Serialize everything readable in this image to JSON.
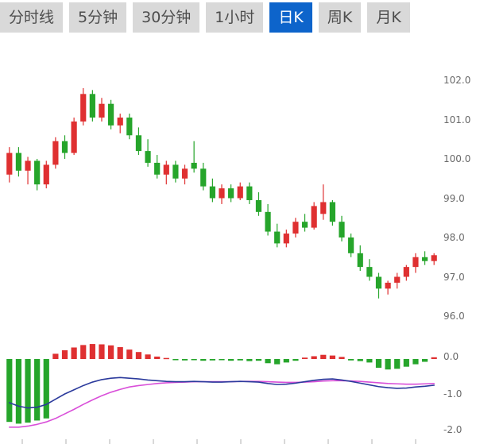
{
  "tabs": {
    "items": [
      {
        "label": "分时线"
      },
      {
        "label": "5分钟"
      },
      {
        "label": "30分钟"
      },
      {
        "label": "1小时"
      },
      {
        "label": "日K"
      },
      {
        "label": "周K"
      },
      {
        "label": "月K"
      }
    ],
    "active_index": 4
  },
  "axes": {
    "price_labels": [
      "102.0",
      "101.0",
      "100.0",
      "99.0",
      "98.0",
      "97.0",
      "96.0"
    ],
    "macd_labels": [
      "0.0",
      "-1.0",
      "-2.0"
    ]
  },
  "colors": {
    "up": "#df3031",
    "down": "#26a52b",
    "dif_line": "#2b3a9c",
    "dea_line": "#d94fd9",
    "tab_bg": "#d9d9d9",
    "tab_text": "#4e4e4e",
    "tab_active_bg": "#0d64cb",
    "tab_active_text": "#ffffff",
    "axis_text": "#6a6a6a",
    "tick": "#b0b0b0"
  },
  "chart_data": {
    "type": "candlestick+macd",
    "interval_selected": "日K",
    "price_axis": {
      "ticks": [
        102.0,
        101.0,
        100.0,
        99.0,
        98.0,
        97.0,
        96.0
      ],
      "ylim": [
        95.7,
        102.9
      ],
      "grid": false
    },
    "macd_axis": {
      "ticks": [
        0.0,
        -1.0,
        -2.0
      ],
      "ylim": [
        -2.3,
        0.6
      ]
    },
    "candles": [
      [
        99.6,
        100.3,
        99.4,
        100.15
      ],
      [
        100.15,
        100.3,
        99.55,
        99.7
      ],
      [
        99.7,
        100.05,
        99.35,
        99.95
      ],
      [
        99.95,
        100.0,
        99.2,
        99.35
      ],
      [
        99.35,
        99.95,
        99.25,
        99.85
      ],
      [
        99.85,
        100.55,
        99.75,
        100.45
      ],
      [
        100.45,
        100.6,
        100.0,
        100.15
      ],
      [
        100.15,
        101.05,
        100.1,
        100.95
      ],
      [
        100.95,
        101.8,
        100.85,
        101.65
      ],
      [
        101.65,
        101.75,
        100.95,
        101.05
      ],
      [
        101.05,
        101.55,
        100.95,
        101.4
      ],
      [
        101.4,
        101.5,
        100.75,
        100.85
      ],
      [
        100.85,
        101.15,
        100.65,
        101.05
      ],
      [
        101.05,
        101.15,
        100.5,
        100.6
      ],
      [
        100.6,
        100.8,
        100.1,
        100.2
      ],
      [
        100.2,
        100.5,
        99.8,
        99.9
      ],
      [
        99.9,
        100.1,
        99.5,
        99.6
      ],
      [
        99.6,
        99.95,
        99.35,
        99.85
      ],
      [
        99.85,
        99.95,
        99.4,
        99.5
      ],
      [
        99.5,
        99.85,
        99.35,
        99.75
      ],
      [
        99.9,
        100.45,
        99.65,
        99.75
      ],
      [
        99.75,
        99.9,
        99.2,
        99.3
      ],
      [
        99.3,
        99.5,
        98.9,
        99.0
      ],
      [
        99.0,
        99.35,
        98.85,
        99.25
      ],
      [
        99.25,
        99.35,
        98.9,
        99.0
      ],
      [
        99.0,
        99.4,
        98.95,
        99.3
      ],
      [
        99.3,
        99.4,
        98.85,
        98.95
      ],
      [
        98.95,
        99.15,
        98.55,
        98.65
      ],
      [
        98.65,
        98.85,
        98.05,
        98.15
      ],
      [
        98.15,
        98.35,
        97.75,
        97.85
      ],
      [
        97.85,
        98.2,
        97.75,
        98.1
      ],
      [
        98.1,
        98.5,
        98.0,
        98.4
      ],
      [
        98.4,
        98.6,
        98.15,
        98.25
      ],
      [
        98.25,
        98.9,
        98.2,
        98.8
      ],
      [
        98.6,
        99.35,
        98.45,
        98.9
      ],
      [
        98.9,
        98.95,
        98.3,
        98.4
      ],
      [
        98.4,
        98.55,
        97.9,
        98.0
      ],
      [
        98.0,
        98.1,
        97.5,
        97.6
      ],
      [
        97.6,
        97.8,
        97.15,
        97.25
      ],
      [
        97.25,
        97.45,
        96.9,
        97.0
      ],
      [
        97.0,
        97.1,
        96.45,
        96.7
      ],
      [
        96.7,
        96.9,
        96.55,
        96.85
      ],
      [
        96.85,
        97.1,
        96.7,
        97.0
      ],
      [
        97.0,
        97.3,
        96.9,
        97.25
      ],
      [
        97.25,
        97.6,
        97.1,
        97.5
      ],
      [
        97.5,
        97.65,
        97.3,
        97.4
      ],
      [
        97.4,
        97.6,
        97.3,
        97.55
      ]
    ],
    "macd_hist": [
      -1.8,
      -1.85,
      -1.82,
      -1.76,
      -1.7,
      0.15,
      0.25,
      0.33,
      0.4,
      0.43,
      0.42,
      0.39,
      0.34,
      0.27,
      0.2,
      0.13,
      0.07,
      0.03,
      -0.03,
      -0.04,
      -0.03,
      -0.05,
      -0.04,
      -0.03,
      -0.05,
      -0.04,
      -0.06,
      -0.05,
      -0.12,
      -0.15,
      -0.1,
      -0.05,
      0.04,
      0.08,
      0.12,
      0.1,
      0.06,
      -0.04,
      -0.06,
      -0.1,
      -0.25,
      -0.3,
      -0.28,
      -0.22,
      -0.15,
      -0.08,
      0.05
    ],
    "dif": [
      -1.25,
      -1.35,
      -1.4,
      -1.38,
      -1.3,
      -1.15,
      -1.0,
      -0.88,
      -0.76,
      -0.66,
      -0.59,
      -0.55,
      -0.53,
      -0.55,
      -0.57,
      -0.6,
      -0.62,
      -0.64,
      -0.65,
      -0.65,
      -0.64,
      -0.65,
      -0.66,
      -0.66,
      -0.65,
      -0.64,
      -0.65,
      -0.66,
      -0.7,
      -0.73,
      -0.72,
      -0.69,
      -0.65,
      -0.61,
      -0.58,
      -0.57,
      -0.6,
      -0.64,
      -0.69,
      -0.74,
      -0.79,
      -0.82,
      -0.84,
      -0.83,
      -0.8,
      -0.78,
      -0.75
    ],
    "dea": [
      -1.95,
      -1.95,
      -1.92,
      -1.87,
      -1.8,
      -1.7,
      -1.57,
      -1.44,
      -1.3,
      -1.17,
      -1.05,
      -0.95,
      -0.87,
      -0.8,
      -0.76,
      -0.73,
      -0.7,
      -0.68,
      -0.67,
      -0.66,
      -0.65,
      -0.65,
      -0.65,
      -0.65,
      -0.65,
      -0.64,
      -0.64,
      -0.64,
      -0.65,
      -0.66,
      -0.67,
      -0.67,
      -0.66,
      -0.65,
      -0.63,
      -0.62,
      -0.62,
      -0.63,
      -0.64,
      -0.66,
      -0.68,
      -0.7,
      -0.71,
      -0.72,
      -0.72,
      -0.71,
      -0.7
    ]
  }
}
